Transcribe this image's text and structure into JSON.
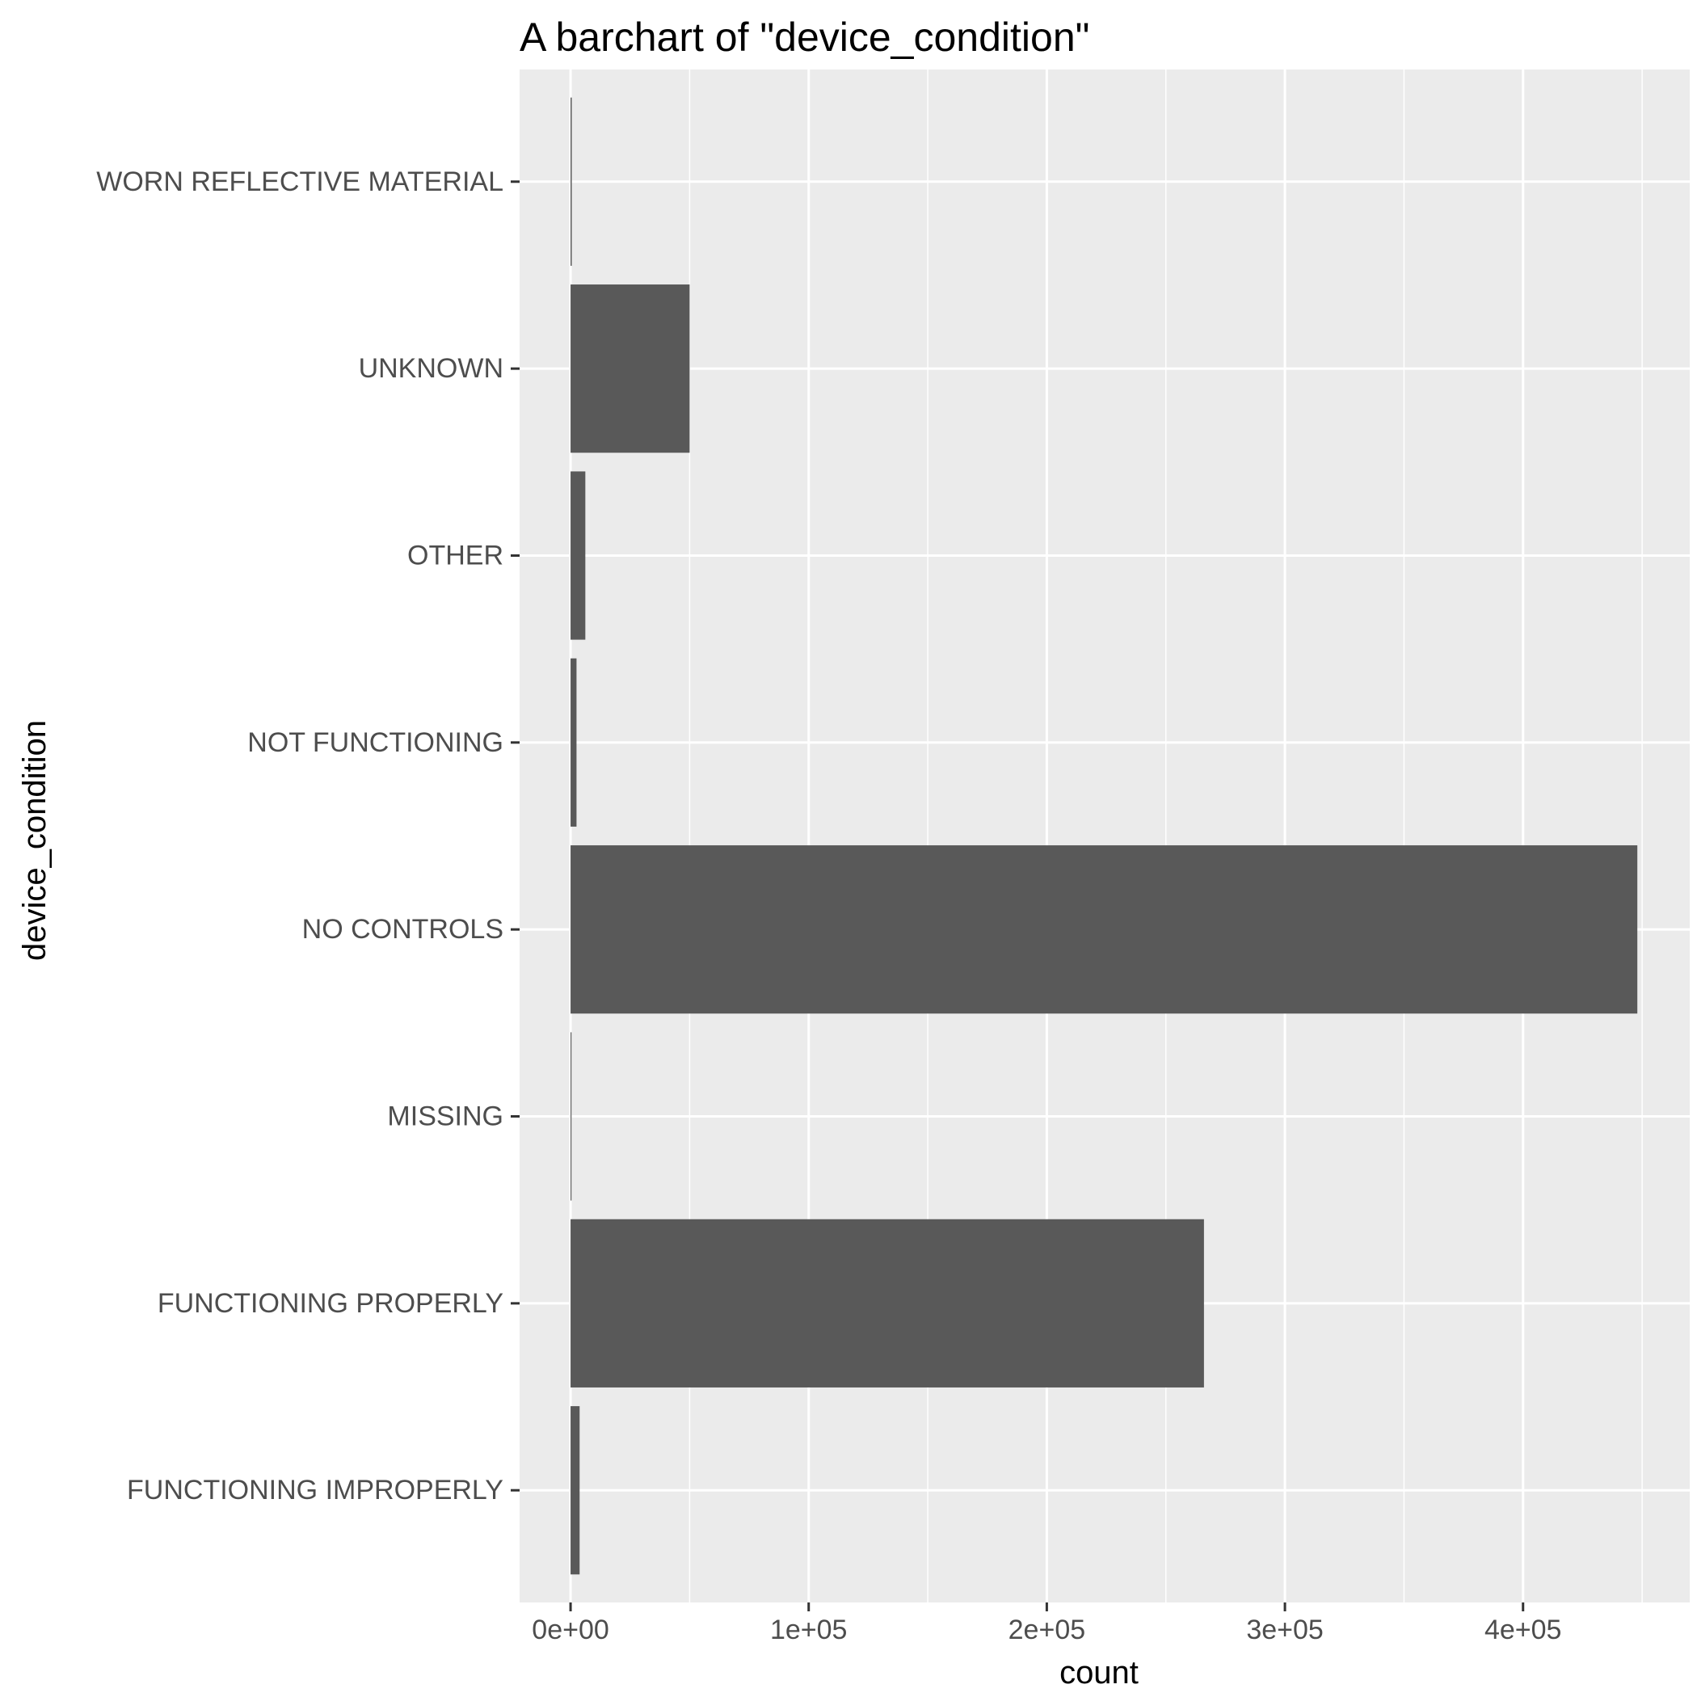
{
  "chart_data": {
    "type": "bar",
    "orientation": "horizontal",
    "title": "A barchart of \"device_condition\"",
    "xlabel": "count",
    "ylabel": "device_condition",
    "categories": [
      "FUNCTIONING IMPROPERLY",
      "FUNCTIONING PROPERLY",
      "MISSING",
      "NO CONTROLS",
      "NOT FUNCTIONING",
      "OTHER",
      "UNKNOWN",
      "WORN REFLECTIVE MATERIAL"
    ],
    "values": [
      3800,
      266000,
      400,
      448000,
      2500,
      6200,
      50000,
      500
    ],
    "xlim": [
      -21400,
      470000
    ],
    "x_ticks": [
      0,
      100000,
      200000,
      300000,
      400000
    ],
    "x_tick_labels": [
      "0e+00",
      "1e+05",
      "2e+05",
      "3e+05",
      "4e+05"
    ],
    "x_minor_ticks": [
      50000,
      150000,
      250000,
      350000,
      450000
    ],
    "grid": true,
    "legend": "none",
    "colors": {
      "bar": "#595959",
      "panel": "#ebebeb",
      "grid": "#ffffff",
      "tick_label": "#4d4d4d",
      "tick_mark": "#333333"
    }
  }
}
